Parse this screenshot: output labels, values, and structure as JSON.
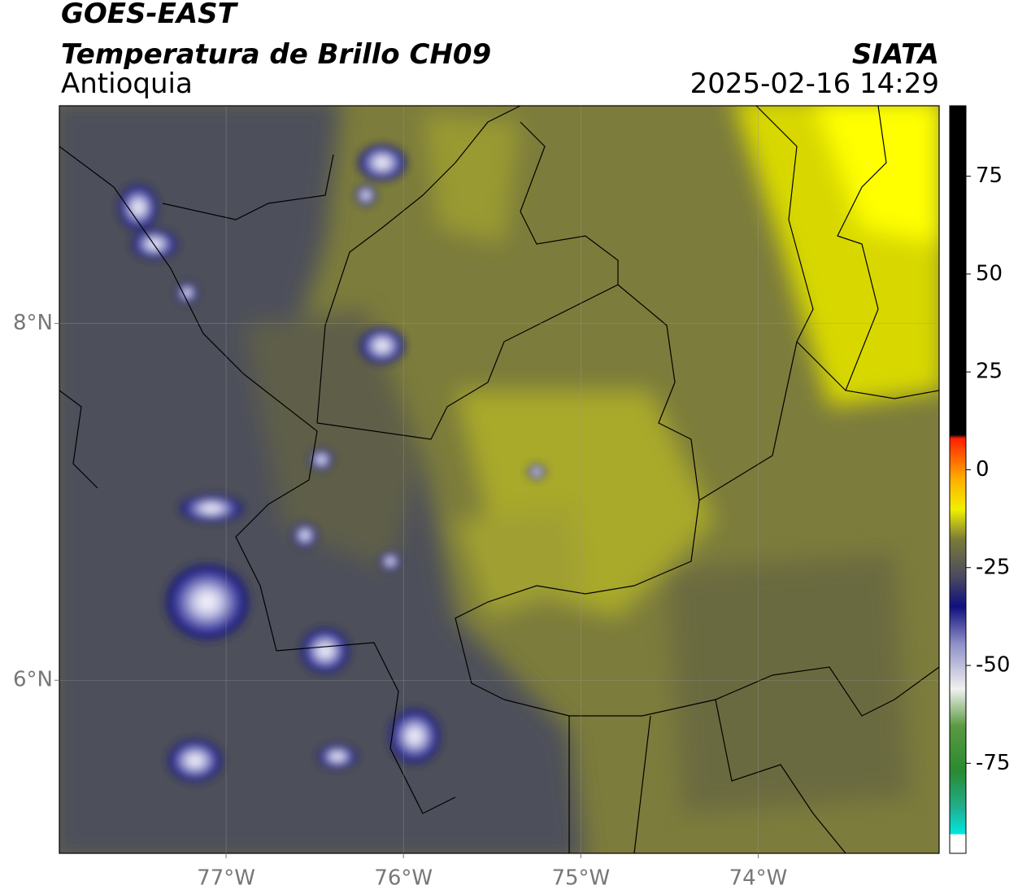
{
  "header": {
    "title": "GOES-EAST",
    "subtitle": "Temperatura de Brillo CH09",
    "region": "Antioquia",
    "source": "SIATA",
    "datetime": "2025-02-16 14:29"
  },
  "map": {
    "xlim": [
      -77.94,
      -72.98
    ],
    "ylim": [
      5.03,
      9.22
    ],
    "xticks": [
      {
        "value": -77,
        "label": "77°W"
      },
      {
        "value": -76,
        "label": "76°W"
      },
      {
        "value": -75,
        "label": "75°W"
      },
      {
        "value": -74,
        "label": "74°W"
      }
    ],
    "yticks": [
      {
        "value": 6,
        "label": "6°N"
      },
      {
        "value": 8,
        "label": "8°N"
      }
    ],
    "grid": true
  },
  "colorbar": {
    "lim": [
      -98,
      93
    ],
    "ticks": [
      -75,
      -50,
      -25,
      0,
      25,
      50,
      75
    ]
  }
}
